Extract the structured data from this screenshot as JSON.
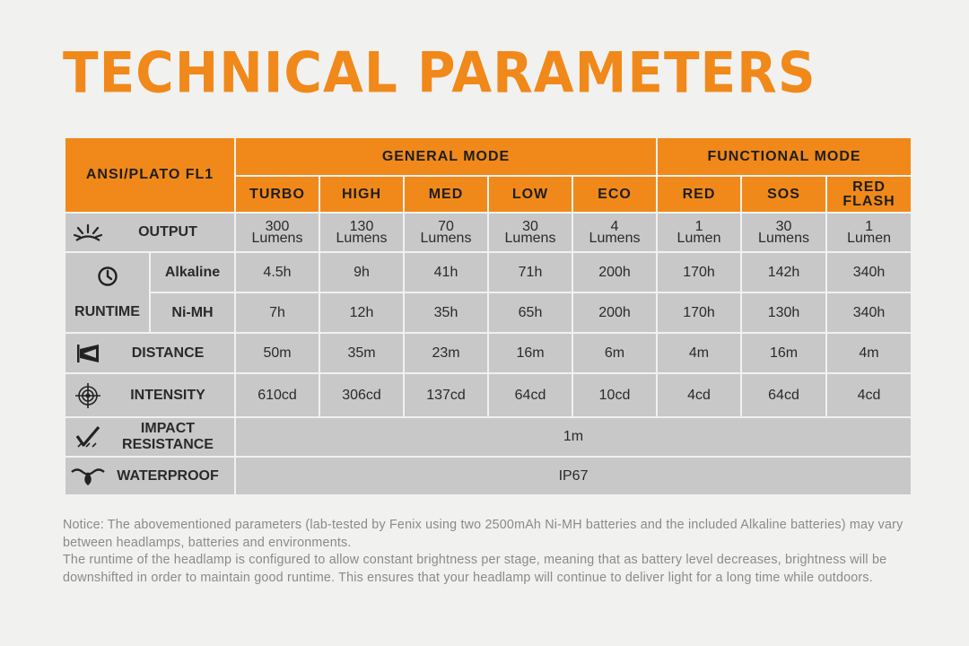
{
  "title": "TECHNICAL PARAMETERS",
  "table": {
    "standard": "ANSI/PLATO FL1",
    "groups": {
      "general": "GENERAL MODE",
      "functional": "FUNCTIONAL MODE"
    },
    "modes": [
      "TURBO",
      "HIGH",
      "MED",
      "LOW",
      "ECO",
      "RED",
      "SOS",
      "RED FLASH"
    ],
    "rows": {
      "output": {
        "label": "OUTPUT",
        "values": [
          [
            "300",
            "Lumens"
          ],
          [
            "130",
            "Lumens"
          ],
          [
            "70",
            "Lumens"
          ],
          [
            "30",
            "Lumens"
          ],
          [
            "4",
            "Lumens"
          ],
          [
            "1",
            "Lumen"
          ],
          [
            "30",
            "Lumens"
          ],
          [
            "1",
            "Lumen"
          ]
        ]
      },
      "runtime": {
        "label": "RUNTIME",
        "alkaline_label": "Alkaline",
        "alkaline": [
          "4.5h",
          "9h",
          "41h",
          "71h",
          "200h",
          "170h",
          "142h",
          "340h"
        ],
        "nimh_label": "Ni-MH",
        "nimh": [
          "7h",
          "12h",
          "35h",
          "65h",
          "200h",
          "170h",
          "130h",
          "340h"
        ]
      },
      "distance": {
        "label": "DISTANCE",
        "values": [
          "50m",
          "35m",
          "23m",
          "16m",
          "6m",
          "4m",
          "16m",
          "4m"
        ]
      },
      "intensity": {
        "label": "INTENSITY",
        "values": [
          "610cd",
          "306cd",
          "137cd",
          "64cd",
          "10cd",
          "4cd",
          "64cd",
          "4cd"
        ]
      },
      "impact": {
        "label": "IMPACT RESISTANCE",
        "value": "1m"
      },
      "waterproof": {
        "label": "WATERPROOF",
        "value": "IP67"
      }
    }
  },
  "icons": {
    "output": "light-burst-icon",
    "runtime": "clock-icon",
    "distance": "beam-distance-icon",
    "intensity": "target-icon",
    "impact": "impact-check-icon",
    "waterproof": "water-drop-icon"
  },
  "colors": {
    "accent": "#f0891a",
    "cell": "#c8c8c8",
    "background": "#f1f1f0"
  },
  "notice": {
    "p1": "Notice: The abovementioned parameters (lab-tested by Fenix using two 2500mAh Ni-MH batteries and the included Alkaline batteries) may vary between headlamps, batteries and environments.",
    "p2": "The runtime of the headlamp is configured to allow constant brightness per stage, meaning that as battery level decreases, brightness will be downshifted  in order to maintain good runtime. This ensures that your headlamp will continue to deliver light for a long time while outdoors."
  }
}
